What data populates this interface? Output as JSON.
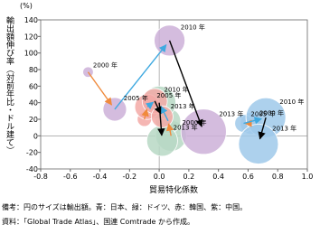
{
  "chart_data": {
    "type": "bubble",
    "y_label_unit": "(%)",
    "y_label": "輸出額伸び率（対前年比・ドル建て）",
    "x_label": "貿易特化係数",
    "notes": [
      "備考：円のサイズは輸出額。青：日本、緑：ドイツ、赤：韓国、紫：中国。",
      "資料：「Global Trade Atlas」、国連 Comtrade から作成。"
    ],
    "xlim": [
      -0.8,
      1.0
    ],
    "xticks": [
      -0.8,
      -0.6,
      -0.4,
      -0.2,
      {
        "value": 0,
        "label": "0.0"
      },
      0.2,
      0.4,
      0.6,
      0.8,
      {
        "value": 1,
        "label": "1.0"
      }
    ],
    "ylim": [
      -40,
      140
    ],
    "yticks": [
      -40,
      -20,
      0,
      20,
      40,
      60,
      80,
      100,
      120,
      140
    ],
    "arrow_colors": [
      "#f08a3c",
      "#3fa9e0",
      "#000000"
    ],
    "series": [
      {
        "color": "#9fc9ea",
        "x": [
          0.62,
          0.57,
          0.72,
          0.67
        ],
        "values": [
          15,
          15,
          22,
          -10
        ],
        "sizes": [
          30,
          20,
          100,
          100
        ],
        "labels": [
          "2000 年",
          "2005 年",
          "2010 年",
          "2013 年"
        ]
      },
      {
        "color": "#b7d8c4",
        "x": [
          0.08,
          0.06,
          0.0,
          0.02
        ],
        "values": [
          0,
          18,
          40,
          -6
        ],
        "sizes": [
          60,
          40,
          70,
          60
        ],
        "labels": [
          "2000 年",
          null,
          null,
          "2013 年"
        ]
      },
      {
        "color": "#f3a9a6",
        "x": [
          -0.1,
          -0.08,
          -0.03,
          0.02
        ],
        "values": [
          20,
          35,
          42,
          23
        ],
        "sizes": [
          13,
          40,
          40,
          30
        ],
        "labels": [
          null,
          "2005 年",
          "2010 年",
          "2013 年"
        ]
      },
      {
        "color": "#cdb0d8",
        "x": [
          -0.48,
          -0.3,
          0.07,
          0.3
        ],
        "values": [
          77,
          32,
          115,
          5
        ],
        "sizes": [
          7,
          35,
          60,
          130
        ],
        "labels": [
          "2000 年",
          "2005 年",
          "2010 年",
          "2013 年"
        ]
      }
    ]
  }
}
